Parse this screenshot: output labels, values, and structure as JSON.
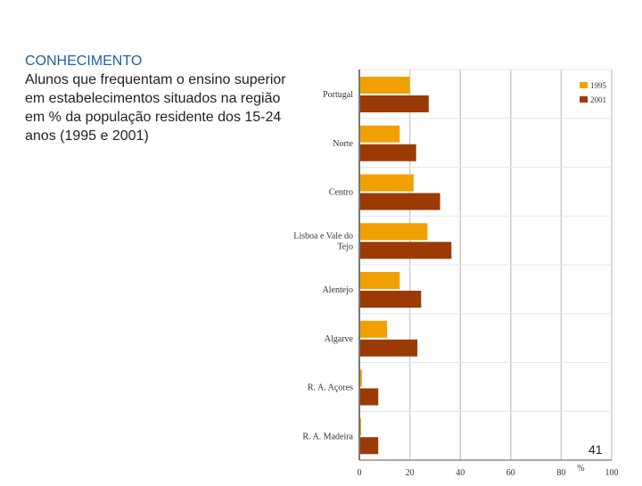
{
  "caption": {
    "kicker": "CONHECIMENTO",
    "body": "Alunos que frequentam o ensino superior em estabelecimentos situados na região em % da população residente dos 15-24 anos (1995 e 2001)"
  },
  "page_number": "41",
  "colors": {
    "series_1995": "#f0a000",
    "series_2001": "#9c3a05",
    "grid": "#cccccc",
    "axis": "#555555"
  },
  "chart_data": {
    "type": "bar",
    "orientation": "horizontal",
    "categories": [
      "Portugal",
      "Norte",
      "Centro",
      "Lisboa e Vale do Tejo",
      "Alentejo",
      "Algarve",
      "R. A. Açores",
      "R. A. Madeira"
    ],
    "category_lines": [
      [
        "Portugal"
      ],
      [
        "Norte"
      ],
      [
        "Centro"
      ],
      [
        "Lisboa e Vale do",
        "Tejo"
      ],
      [
        "Alentejo"
      ],
      [
        "Algarve"
      ],
      [
        "R. A. Açores"
      ],
      [
        "R. A. Madeira"
      ]
    ],
    "series": [
      {
        "name": "1995",
        "values": [
          20,
          16,
          21.5,
          27,
          16,
          11,
          1,
          0.5
        ]
      },
      {
        "name": "2001",
        "values": [
          27.5,
          22.5,
          32,
          36.5,
          24.5,
          23,
          7.5,
          7.5
        ]
      }
    ],
    "xlim": [
      0,
      100
    ],
    "xticks": [
      "0",
      "20",
      "40",
      "60",
      "80",
      "100"
    ],
    "xunit": "%",
    "grid": true,
    "legend_position": "top-right"
  }
}
